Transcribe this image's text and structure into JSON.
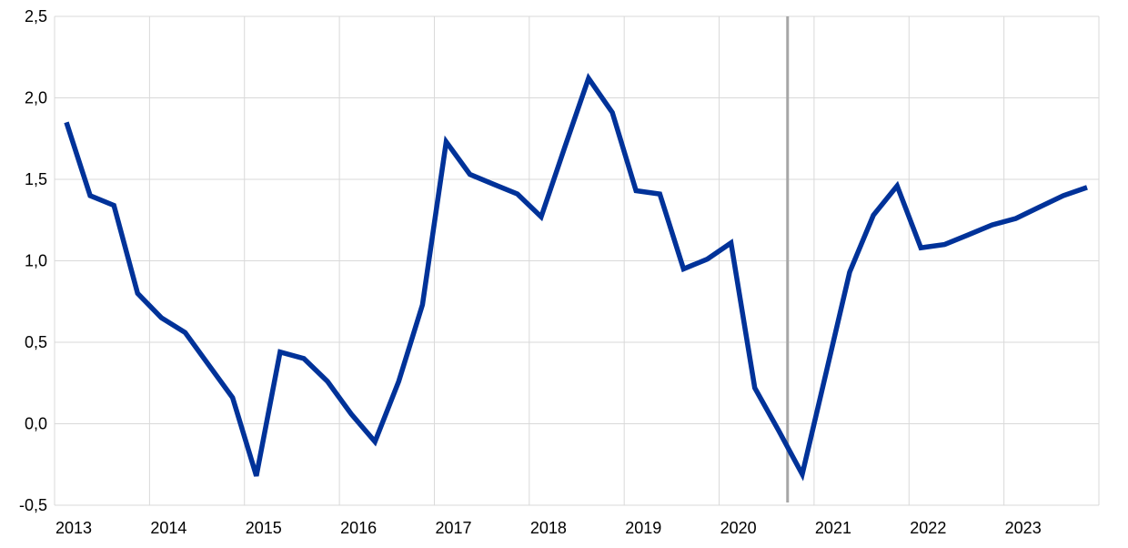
{
  "chart_data": {
    "type": "line",
    "title": "",
    "xlabel": "",
    "ylabel": "",
    "ylim": [
      -0.5,
      2.5
    ],
    "yticks": [
      -0.5,
      0.0,
      0.5,
      1.0,
      1.5,
      2.0,
      2.5
    ],
    "ytick_labels": [
      "-0,5",
      "0,0",
      "0,5",
      "1,0",
      "1,5",
      "2,0",
      "2,5"
    ],
    "xtick_labels": [
      "2013",
      "2014",
      "2015",
      "2016",
      "2017",
      "2018",
      "2019",
      "2020",
      "2021",
      "2022",
      "2023"
    ],
    "grid": true,
    "line_color": "#003299",
    "marker_line_color": "#a6a6a6",
    "vertical_marker_x": "2020-Q3",
    "x": [
      "2013-Q1",
      "2013-Q2",
      "2013-Q3",
      "2013-Q4",
      "2014-Q1",
      "2014-Q2",
      "2014-Q3",
      "2014-Q4",
      "2015-Q1",
      "2015-Q2",
      "2015-Q3",
      "2015-Q4",
      "2016-Q1",
      "2016-Q2",
      "2016-Q3",
      "2016-Q4",
      "2017-Q1",
      "2017-Q2",
      "2017-Q3",
      "2017-Q4",
      "2018-Q1",
      "2018-Q2",
      "2018-Q3",
      "2018-Q4",
      "2019-Q1",
      "2019-Q2",
      "2019-Q3",
      "2019-Q4",
      "2020-Q1",
      "2020-Q2",
      "2020-Q3",
      "2020-Q4",
      "2021-Q1",
      "2021-Q2",
      "2021-Q3",
      "2021-Q4",
      "2022-Q1",
      "2022-Q2",
      "2022-Q3",
      "2022-Q4",
      "2023-Q1",
      "2023-Q2",
      "2023-Q3",
      "2023-Q4"
    ],
    "series": [
      {
        "values": [
          1.85,
          1.4,
          1.34,
          0.8,
          0.65,
          0.56,
          0.36,
          0.16,
          -0.32,
          0.44,
          0.4,
          0.26,
          0.06,
          -0.11,
          0.26,
          0.73,
          1.73,
          1.53,
          1.47,
          1.41,
          1.27,
          1.7,
          2.12,
          1.91,
          1.43,
          1.41,
          0.95,
          1.01,
          1.11,
          0.22,
          -0.04,
          -0.31,
          0.31,
          0.93,
          1.28,
          1.46,
          1.08,
          1.1,
          1.16,
          1.22,
          1.26,
          1.33,
          1.4,
          1.45
        ]
      }
    ]
  }
}
